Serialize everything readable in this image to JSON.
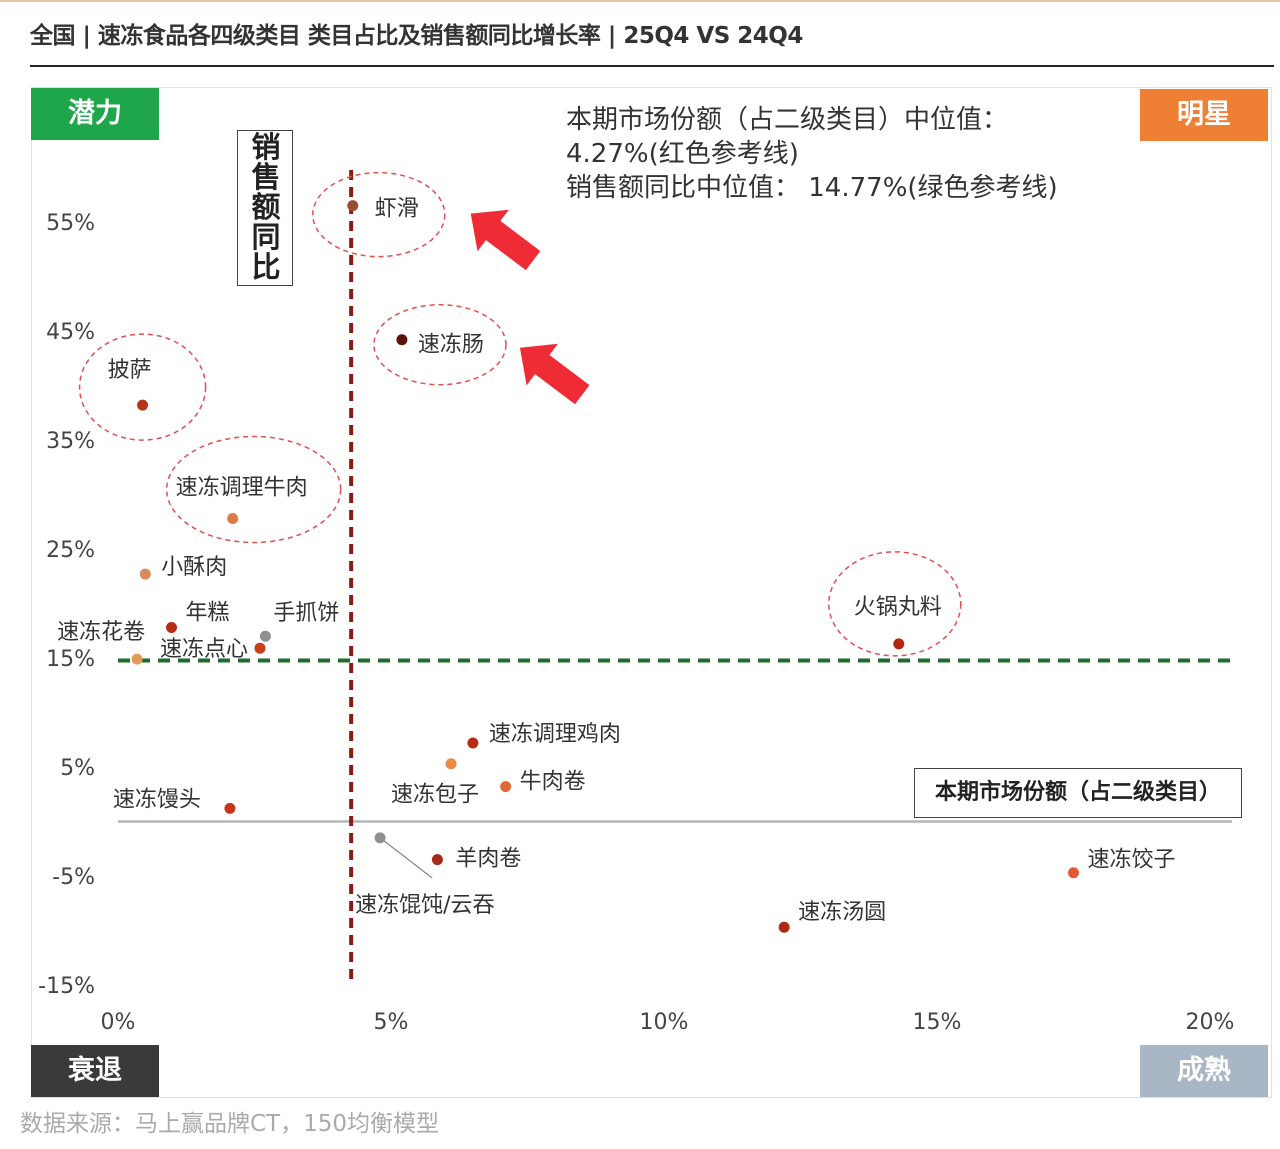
{
  "header": {
    "title": "全国 | 速冻食品各四级类目 类目占比及销售额同比增长率 | 25Q4 VS 24Q4"
  },
  "quadrants": {
    "potential": "潜力",
    "star": "明星",
    "decline": "衰退",
    "mature": "成熟"
  },
  "info": {
    "line1": "本期市场份额（占二级类目）中位值：",
    "line2": "4.27%(红色参考线)",
    "line3": "销售额同比中位值： 14.77%(绿色参考线)"
  },
  "axis_titles": {
    "y": "销售额同比",
    "x": "本期市场份额（占二级类目）"
  },
  "source": "数据来源：马上赢品牌CT，150均衡模型",
  "colors": {
    "potential": "#1fa64a",
    "star": "#ef7f33",
    "decline": "#3a3a3a",
    "mature": "#a8b6c6",
    "median_share_line": "#8b1a10",
    "median_yoy_line": "#1f6b2e",
    "highlight_arrow": "#ef2b36",
    "highlight_circle": "#e05050"
  },
  "chart_data": {
    "type": "scatter",
    "xlim": [
      0,
      20
    ],
    "ylim": [
      -15,
      60
    ],
    "x_ticks": [
      "0%",
      "5%",
      "10%",
      "15%",
      "20%"
    ],
    "y_ticks": [
      "55%",
      "45%",
      "35%",
      "25%",
      "15%",
      "5%",
      "-5%",
      "-15%"
    ],
    "median_share": 4.27,
    "median_yoy": 14.77,
    "points": [
      {
        "label": "虾滑",
        "x": 4.3,
        "y": 56.5,
        "color": "#9a4a35",
        "circled": true,
        "arrow": true
      },
      {
        "label": "速冻肠",
        "x": 5.2,
        "y": 44.2,
        "color": "#5a1108",
        "circled": true,
        "arrow": true
      },
      {
        "label": "披萨",
        "x": 0.45,
        "y": 38.2,
        "color": "#b63418",
        "circled": true
      },
      {
        "label": "速冻调理牛肉",
        "x": 2.1,
        "y": 27.8,
        "color": "#e07a44",
        "circled": true
      },
      {
        "label": "小酥肉",
        "x": 0.5,
        "y": 22.7,
        "color": "#d98a5e"
      },
      {
        "label": "年糕",
        "x": 0.98,
        "y": 17.8,
        "color": "#b82c14"
      },
      {
        "label": "手抓饼",
        "x": 2.7,
        "y": 17.0,
        "color": "#909090"
      },
      {
        "label": "速冻花卷",
        "x": 0.35,
        "y": 14.9,
        "color": "#e39a55"
      },
      {
        "label": "速冻点心",
        "x": 2.6,
        "y": 15.9,
        "color": "#c8401a"
      },
      {
        "label": "火锅丸料",
        "x": 14.3,
        "y": 16.3,
        "color": "#b02810",
        "circled": true
      },
      {
        "label": "速冻调理鸡肉",
        "x": 6.5,
        "y": 7.2,
        "color": "#b82c14"
      },
      {
        "label": "速冻包子",
        "x": 6.1,
        "y": 5.3,
        "color": "#eb8a45"
      },
      {
        "label": "牛肉卷",
        "x": 7.1,
        "y": 3.2,
        "color": "#df6a38"
      },
      {
        "label": "速冻馒头",
        "x": 2.05,
        "y": 1.2,
        "color": "#c8361a"
      },
      {
        "label": "速冻馄饨/云吞",
        "x": 4.8,
        "y": -1.5,
        "color": "#909090"
      },
      {
        "label": "羊肉卷",
        "x": 5.85,
        "y": -3.5,
        "color": "#a52a14"
      },
      {
        "label": "速冻饺子",
        "x": 17.5,
        "y": -4.7,
        "color": "#e05a35"
      },
      {
        "label": "速冻汤圆",
        "x": 12.2,
        "y": -9.7,
        "color": "#b02810"
      }
    ]
  }
}
